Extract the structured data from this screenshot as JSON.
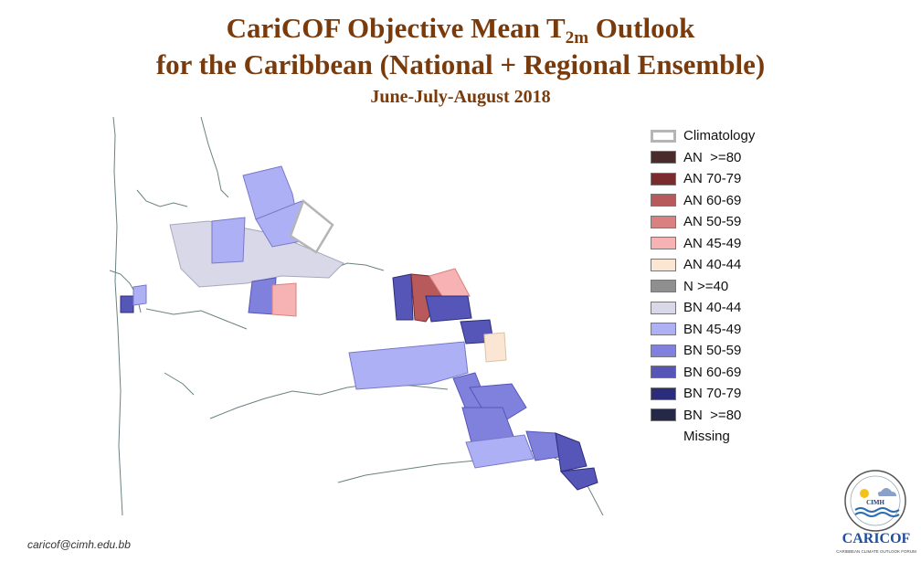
{
  "header": {
    "title_prefix": "CariCOF Objective Mean T",
    "title_sub": "2m",
    "title_suffix": " Outlook",
    "title_line2": "for the Caribbean (National + Regional Ensemble)",
    "subtitle": "June-July-August 2018"
  },
  "legend": {
    "items": [
      {
        "label": "Climatology",
        "color": "#ffffff"
      },
      {
        "label": "AN  >=80",
        "color": "#4a2a2a"
      },
      {
        "label": "AN 70-79",
        "color": "#7b2a2e"
      },
      {
        "label": "AN 60-69",
        "color": "#b85a5c"
      },
      {
        "label": "AN 50-59",
        "color": "#d98080"
      },
      {
        "label": "AN 45-49",
        "color": "#f7b3b3"
      },
      {
        "label": "AN 40-44",
        "color": "#fbe6d3"
      },
      {
        "label": "N >=40",
        "color": "#8f8f8f"
      },
      {
        "label": "BN 40-44",
        "color": "#d8d8e8"
      },
      {
        "label": "BN 45-49",
        "color": "#aeb0f5"
      },
      {
        "label": "BN 50-59",
        "color": "#8081dd"
      },
      {
        "label": "BN 60-69",
        "color": "#5556b8"
      },
      {
        "label": "BN 70-79",
        "color": "#2c2d7a"
      },
      {
        "label": "BN  >=80",
        "color": "#262848"
      },
      {
        "label": "Missing",
        "color": ""
      }
    ]
  },
  "footer": {
    "email": "caricof@cimh.edu.bb"
  },
  "logo": {
    "text": "CIMH",
    "brand": "CARICOF",
    "tagline": "CARIBBEAN CLIMATE OUTLOOK FORUM"
  }
}
